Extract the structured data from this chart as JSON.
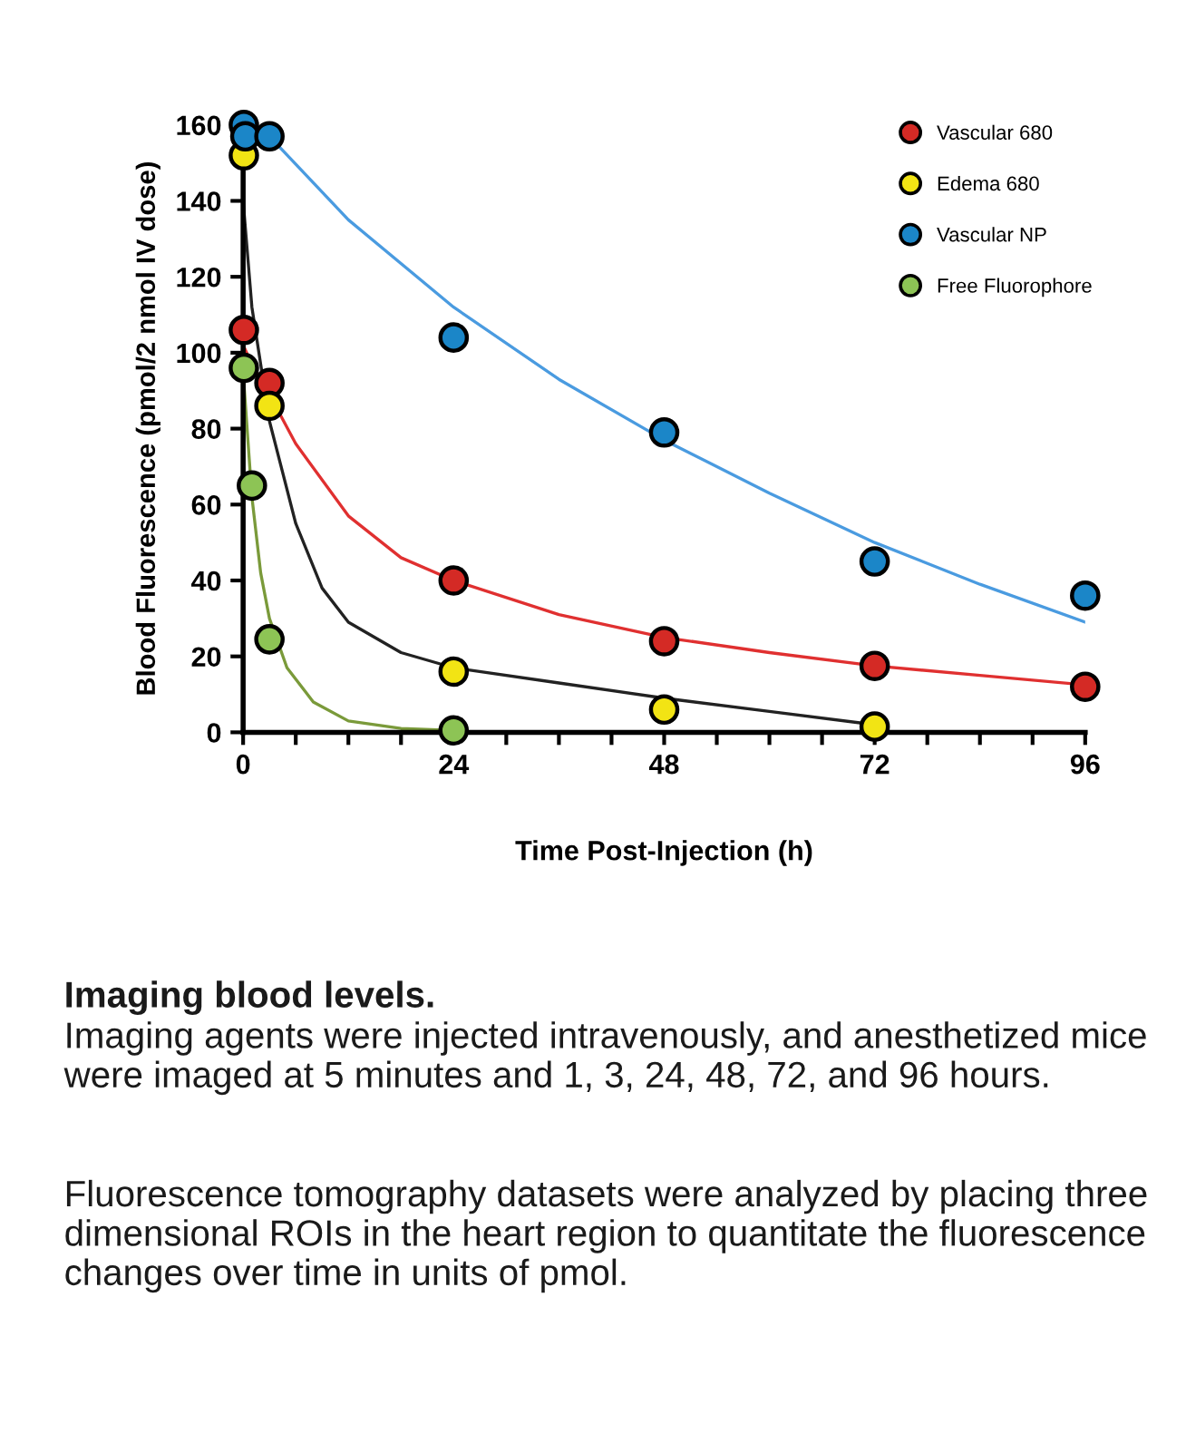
{
  "chart_data": {
    "type": "scatter",
    "xlabel": "Time Post-Injection (h)",
    "ylabel": "Blood Fluorescence (pmol/2 nmol IV dose)",
    "xlim": [
      0,
      96
    ],
    "ylim": [
      0,
      160
    ],
    "xticks": [
      0,
      {
        "value": 6,
        "label": null
      },
      {
        "value": 12,
        "label": null
      },
      {
        "value": 18,
        "label": null
      },
      24,
      {
        "value": 30,
        "label": null
      },
      {
        "value": 36,
        "label": null
      },
      {
        "value": 42,
        "label": null
      },
      48,
      {
        "value": 54,
        "label": null
      },
      {
        "value": 60,
        "label": null
      },
      {
        "value": 66,
        "label": null
      },
      72,
      {
        "value": 78,
        "label": null
      },
      {
        "value": 84,
        "label": null
      },
      {
        "value": 90,
        "label": null
      },
      96
    ],
    "yticks": [
      0,
      20,
      40,
      60,
      80,
      100,
      120,
      140,
      160
    ],
    "grid": false,
    "legend": "top right",
    "marker": "circle",
    "series": [
      {
        "type": "line",
        "marker": "none",
        "color": "#4a9be0",
        "x": [
          0,
          3,
          12,
          24,
          36,
          48,
          60,
          72,
          84,
          96
        ],
        "values": [
          160,
          157,
          135,
          112,
          93,
          77,
          63,
          50,
          39,
          29
        ]
      },
      {
        "type": "line",
        "marker": "none",
        "color": "#e03030",
        "x": [
          0,
          1,
          3,
          6,
          12,
          18,
          24,
          36,
          48,
          60,
          72,
          84,
          96
        ],
        "values": [
          102,
          97,
          89,
          76,
          57,
          46,
          40,
          31,
          25,
          21,
          17.5,
          15,
          12.5
        ]
      },
      {
        "type": "line",
        "marker": "none",
        "color": "#222222",
        "x": [
          0,
          1,
          3,
          6,
          9,
          12,
          18,
          24,
          36,
          48,
          60,
          72
        ],
        "values": [
          140,
          112,
          82,
          55,
          38,
          29,
          21,
          17,
          13,
          9,
          5.5,
          2
        ]
      },
      {
        "type": "line",
        "marker": "none",
        "color": "#7a9a3a",
        "x": [
          0,
          1,
          2,
          3,
          5,
          8,
          12,
          18,
          24
        ],
        "values": [
          95,
          62,
          42,
          30,
          17,
          8,
          3,
          1,
          0.5
        ]
      },
      {
        "name": "Vascular 680",
        "color": "#d42a25",
        "x": [
          0.083,
          3,
          24,
          48,
          72,
          96
        ],
        "values": [
          106,
          92,
          40,
          24,
          17.5,
          12
        ]
      },
      {
        "name": "Edema 680",
        "color": "#f2e414",
        "x": [
          0.083,
          3,
          24,
          48,
          72
        ],
        "values": [
          152,
          86,
          16,
          6,
          1.5
        ]
      },
      {
        "name": "Vascular NP",
        "color": "#1b86c8",
        "x": [
          0.083,
          0.25,
          3,
          24,
          48,
          72,
          96
        ],
        "values": [
          160,
          157,
          157,
          104,
          79,
          45,
          36
        ]
      },
      {
        "name": "Free Fluorophore",
        "color": "#8dc455",
        "x": [
          0.083,
          1,
          3,
          24
        ],
        "values": [
          96,
          65,
          24.5,
          0.5
        ]
      }
    ],
    "annotations": [
      "Imaging blood levels.",
      "Imaging agents were injected intravenously, and anesthetized mice were imaged at 5 minutes and 1, 3, 24, 48, 72, and 96 hours.",
      "Fluorescence tomography datasets were analyzed by placing three dimensional ROIs in the heart region to quantitate the fluorescence changes over time in units of pmol."
    ]
  }
}
